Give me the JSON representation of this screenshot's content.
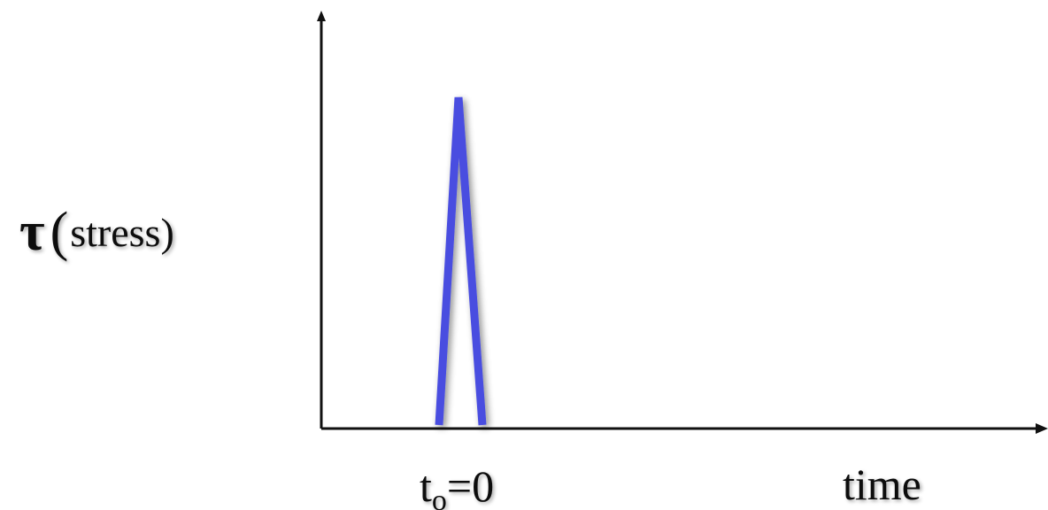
{
  "diagram": {
    "y_axis_label": {
      "symbol": "τ",
      "open_paren": "(",
      "word": "stress)"
    },
    "x_axis_label": "time",
    "x_tick": {
      "base": "t",
      "subscript": "o",
      "rest": "=0"
    },
    "pulse": {
      "color": "#4a4ee0",
      "description_shape": "narrow triangular spike starting near t=0"
    },
    "axis_color": "#111111",
    "shadow": true
  }
}
